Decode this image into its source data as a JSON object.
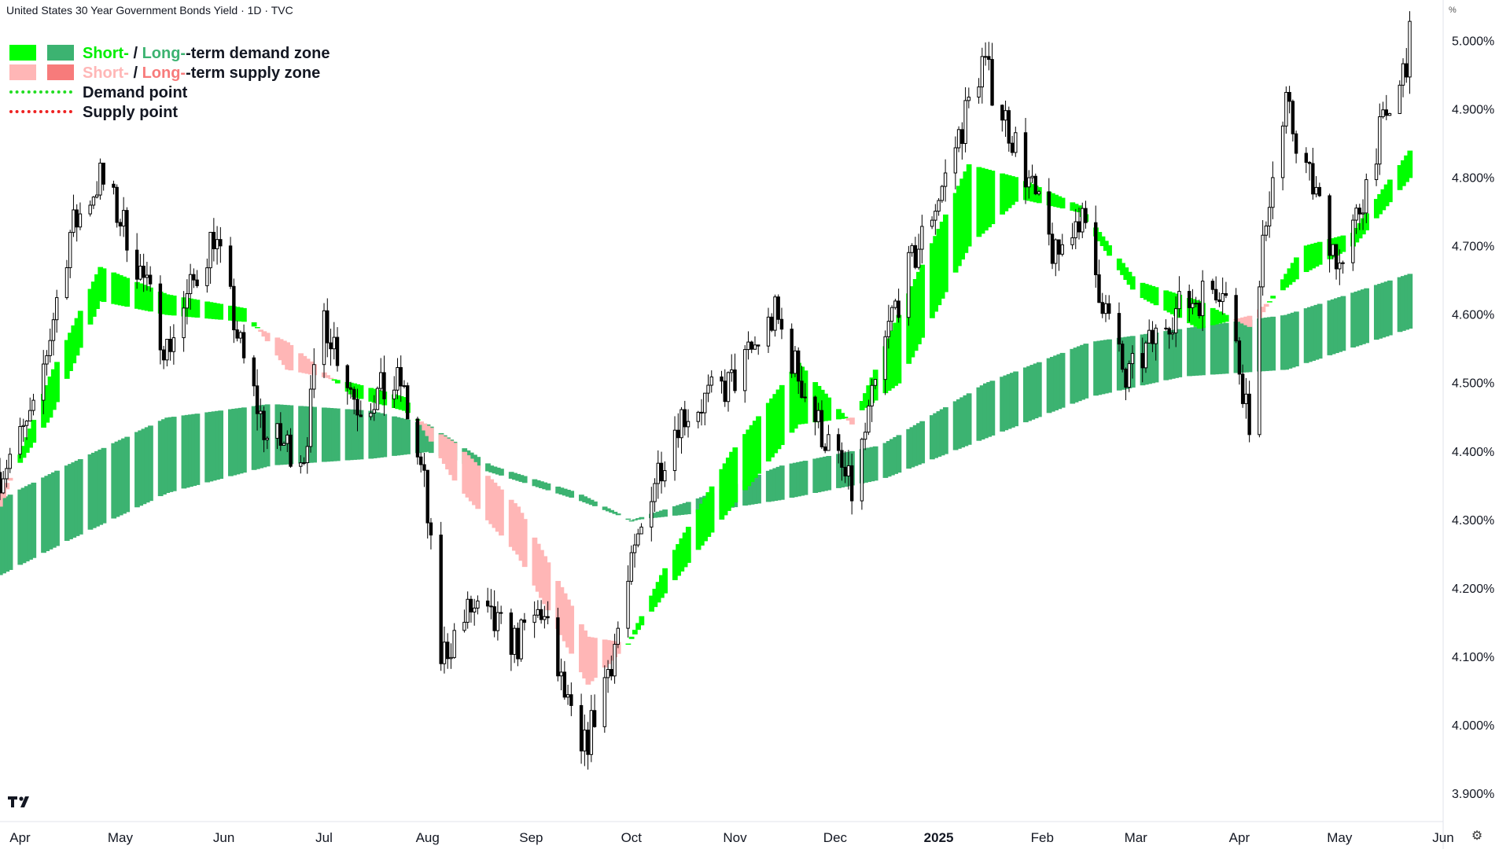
{
  "window": {
    "title": "United States 30 Year Government Bonds Yield · 1D · TVC"
  },
  "unit_label": "%",
  "legend": [
    {
      "swatch": [
        "#00ff00",
        "#3cb371"
      ],
      "part1": "Short-",
      "sep": " / ",
      "part2": "Long-",
      "rest": "-term demand zone",
      "color1": "#00ff00",
      "color2": "#3cb371"
    },
    {
      "swatch": [
        "#ffb6b6",
        "#f77b7b"
      ],
      "part1": "Short-",
      "sep": " / ",
      "part2": "Long-",
      "rest": "-term supply zone",
      "color1": "#ffb6b6",
      "color2": "#f77b7b"
    },
    {
      "dotted": "#22dd22",
      "text": "Demand point"
    },
    {
      "dotted": "#ee2222",
      "text": "Supply point"
    }
  ],
  "icons": {
    "logo": "tradingview-logo-icon",
    "settings": "gear-icon"
  },
  "colors": {
    "short_demand": "#00ff00",
    "long_demand": "#3cb371",
    "short_supply": "#ffb6b6",
    "long_supply": "#f77b7b",
    "transition": "#f08000",
    "candle_up_fill": "#ffffff",
    "candle_down_fill": "#000000",
    "wick": "#000000"
  },
  "chart_data": {
    "type": "candlestick",
    "title": "United States 30 Year Government Bonds Yield · 1D · TVC",
    "y_axis": {
      "unit": "%",
      "ylim": [
        3.86,
        5.06
      ],
      "ticks": [
        3.9,
        4.0,
        4.1,
        4.2,
        4.3,
        4.4,
        4.5,
        4.6,
        4.7,
        4.8,
        4.9,
        5.0
      ],
      "tick_labels": [
        "3.900%",
        "4.000%",
        "4.100%",
        "4.200%",
        "4.300%",
        "4.400%",
        "4.500%",
        "4.600%",
        "4.700%",
        "4.800%",
        "4.900%",
        "5.000%"
      ]
    },
    "x_axis": {
      "range": [
        "2024-03-26",
        "2025-06-01"
      ],
      "ticks": [
        {
          "date": "2024-04-01",
          "label": "Apr"
        },
        {
          "date": "2024-05-01",
          "label": "May"
        },
        {
          "date": "2024-06-01",
          "label": "Jun"
        },
        {
          "date": "2024-07-01",
          "label": "Jul"
        },
        {
          "date": "2024-08-01",
          "label": "Aug"
        },
        {
          "date": "2024-09-01",
          "label": "Sep"
        },
        {
          "date": "2024-10-01",
          "label": "Oct"
        },
        {
          "date": "2024-11-01",
          "label": "Nov"
        },
        {
          "date": "2024-12-01",
          "label": "Dec"
        },
        {
          "date": "2025-01-01",
          "label": "2025"
        },
        {
          "date": "2025-02-01",
          "label": "Feb"
        },
        {
          "date": "2025-03-01",
          "label": "Mar"
        },
        {
          "date": "2025-04-01",
          "label": "Apr"
        },
        {
          "date": "2025-05-01",
          "label": "May"
        },
        {
          "date": "2025-06-01",
          "label": "Jun"
        }
      ]
    },
    "grid": false,
    "legend_position": "top-left",
    "price_anchors": [
      [
        "2024-03-26",
        4.37
      ],
      [
        "2024-04-05",
        4.45
      ],
      [
        "2024-04-16",
        4.72
      ],
      [
        "2024-04-25",
        4.8
      ],
      [
        "2024-05-03",
        4.72
      ],
      [
        "2024-05-15",
        4.55
      ],
      [
        "2024-05-29",
        4.72
      ],
      [
        "2024-06-07",
        4.53
      ],
      [
        "2024-06-14",
        4.42
      ],
      [
        "2024-06-25",
        4.4
      ],
      [
        "2024-07-01",
        4.6
      ],
      [
        "2024-07-11",
        4.47
      ],
      [
        "2024-07-24",
        4.5
      ],
      [
        "2024-07-31",
        4.35
      ],
      [
        "2024-08-05",
        4.1
      ],
      [
        "2024-08-14",
        4.17
      ],
      [
        "2024-08-28",
        4.12
      ],
      [
        "2024-09-04",
        4.17
      ],
      [
        "2024-09-16",
        3.95
      ],
      [
        "2024-09-25",
        4.1
      ],
      [
        "2024-10-07",
        4.35
      ],
      [
        "2024-10-15",
        4.45
      ],
      [
        "2024-10-31",
        4.5
      ],
      [
        "2024-11-13",
        4.6
      ],
      [
        "2024-11-25",
        4.45
      ],
      [
        "2024-12-06",
        4.34
      ],
      [
        "2024-12-18",
        4.6
      ],
      [
        "2025-01-03",
        4.8
      ],
      [
        "2025-01-14",
        4.97
      ],
      [
        "2025-01-24",
        4.85
      ],
      [
        "2025-02-05",
        4.68
      ],
      [
        "2025-02-12",
        4.75
      ],
      [
        "2025-02-26",
        4.5
      ],
      [
        "2025-03-11",
        4.6
      ],
      [
        "2025-03-27",
        4.65
      ],
      [
        "2025-04-04",
        4.45
      ],
      [
        "2025-04-09",
        4.75
      ],
      [
        "2025-04-15",
        4.9
      ],
      [
        "2025-04-22",
        4.8
      ],
      [
        "2025-05-02",
        4.66
      ],
      [
        "2025-05-12",
        4.85
      ],
      [
        "2025-05-19",
        4.93
      ],
      [
        "2025-05-22",
        5.0
      ]
    ],
    "long_term_zone": [
      [
        "2024-03-26",
        4.33,
        4.22
      ],
      [
        "2024-04-15",
        4.38,
        4.27
      ],
      [
        "2024-05-15",
        4.45,
        4.34
      ],
      [
        "2024-06-15",
        4.47,
        4.38
      ],
      [
        "2024-07-15",
        4.46,
        4.39
      ],
      [
        "2024-08-01",
        4.44,
        4.4
      ],
      [
        "2024-08-20",
        4.38,
        4.37
      ],
      [
        "2024-09-15",
        4.34,
        4.33
      ],
      [
        "2024-10-01",
        4.3,
        4.3
      ],
      [
        "2024-10-20",
        4.33,
        4.31
      ],
      [
        "2024-11-15",
        4.38,
        4.33
      ],
      [
        "2024-12-15",
        4.41,
        4.36
      ],
      [
        "2025-01-15",
        4.5,
        4.42
      ],
      [
        "2025-02-15",
        4.56,
        4.48
      ],
      [
        "2025-03-15",
        4.58,
        4.51
      ],
      [
        "2025-04-15",
        4.6,
        4.52
      ],
      [
        "2025-05-22",
        4.66,
        4.58
      ]
    ],
    "short_term_zone": [
      [
        "2024-03-26",
        4.32,
        4.34
      ],
      [
        "2024-04-10",
        4.51,
        4.45
      ],
      [
        "2024-04-25",
        4.67,
        4.62
      ],
      [
        "2024-05-15",
        4.63,
        4.6
      ],
      [
        "2024-06-07",
        4.61,
        4.59
      ],
      [
        "2024-06-20",
        4.52,
        4.56
      ],
      [
        "2024-07-10",
        4.5,
        4.48
      ],
      [
        "2024-07-25",
        4.48,
        4.46
      ],
      [
        "2024-08-10",
        4.35,
        4.41
      ],
      [
        "2024-08-28",
        4.25,
        4.32
      ],
      [
        "2024-09-18",
        4.06,
        4.13
      ],
      [
        "2024-09-30",
        4.12,
        4.12
      ],
      [
        "2024-10-12",
        4.24,
        4.2
      ],
      [
        "2024-10-31",
        4.4,
        4.32
      ],
      [
        "2024-11-20",
        4.53,
        4.44
      ],
      [
        "2024-12-06",
        4.44,
        4.45
      ],
      [
        "2024-12-20",
        4.6,
        4.5
      ],
      [
        "2025-01-10",
        4.82,
        4.7
      ],
      [
        "2025-01-25",
        4.8,
        4.77
      ],
      [
        "2025-02-12",
        4.76,
        4.75
      ],
      [
        "2025-03-01",
        4.65,
        4.63
      ],
      [
        "2025-03-20",
        4.62,
        4.58
      ],
      [
        "2025-04-05",
        4.58,
        4.6
      ],
      [
        "2025-04-20",
        4.7,
        4.66
      ],
      [
        "2025-05-05",
        4.72,
        4.7
      ],
      [
        "2025-05-22",
        4.84,
        4.8
      ]
    ]
  }
}
